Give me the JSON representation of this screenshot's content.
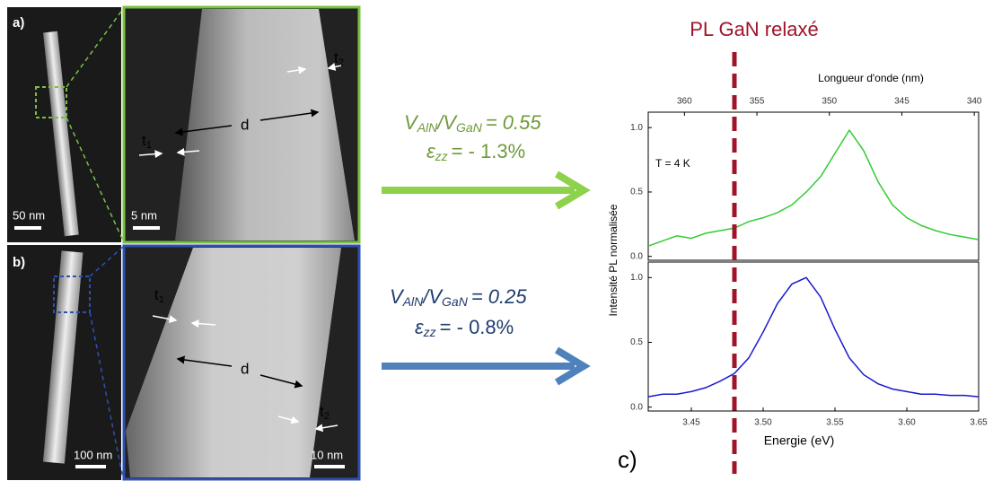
{
  "panels": {
    "a": {
      "label": "a)",
      "scale_small": "50 nm",
      "scale_large": "5 nm",
      "t1": "t",
      "t1_sub": "1",
      "t2": "t",
      "t2_sub": "2",
      "d": "d"
    },
    "b": {
      "label": "b)",
      "scale_small": "100 nm",
      "scale_large": "10 nm",
      "t1": "t",
      "t1_sub": "1",
      "t2": "t",
      "t2_sub": "2",
      "d": "d"
    }
  },
  "formulas": [
    {
      "v1": "V",
      "sub1": "AlN",
      "v2": "/V",
      "sub2": "GaN",
      "ratio": "= 0.55",
      "eps": "ε",
      "eps_sub": "zz",
      "strain": "= - 1.3%"
    },
    {
      "v1": "V",
      "sub1": "AlN",
      "v2": "/V",
      "sub2": "GaN",
      "ratio": "= 0.25",
      "eps": "ε",
      "eps_sub": "zz",
      "strain": "= - 0.8%"
    }
  ],
  "panel_c_label": "c)",
  "chart_data": [
    {
      "type": "line",
      "x2label": "Longueur d'onde (nm)",
      "x2lim": [
        362.5,
        339.7
      ],
      "x2ticks": [
        360,
        355,
        350,
        345,
        340
      ],
      "ylabel": "Intensité PL normalisée",
      "annotation": "T = 4 K",
      "reference_line": {
        "label": "PL GaN relaxé",
        "x": 3.48,
        "color": "#a0142a"
      },
      "xlim": [
        3.42,
        3.65
      ],
      "ylim": [
        -0.03,
        1.12
      ],
      "yticks": [
        {
          "value": 0,
          "label": "0.0"
        },
        {
          "value": 0.5,
          "label": "0.5"
        },
        {
          "value": 1,
          "label": "1.0"
        }
      ],
      "x": [
        3.42,
        3.43,
        3.44,
        3.45,
        3.46,
        3.47,
        3.48,
        3.49,
        3.5,
        3.51,
        3.52,
        3.53,
        3.54,
        3.55,
        3.56,
        3.57,
        3.58,
        3.59,
        3.6,
        3.61,
        3.62,
        3.63,
        3.64,
        3.65
      ],
      "series": [
        {
          "color": "#33cc33",
          "values": [
            0.08,
            0.12,
            0.16,
            0.14,
            0.18,
            0.2,
            0.22,
            0.27,
            0.3,
            0.34,
            0.4,
            0.5,
            0.62,
            0.8,
            0.98,
            0.82,
            0.58,
            0.4,
            0.3,
            0.24,
            0.2,
            0.17,
            0.15,
            0.13
          ]
        }
      ]
    },
    {
      "type": "line",
      "xlabel": "Energie (eV)",
      "xlim": [
        3.42,
        3.65
      ],
      "ylim": [
        -0.03,
        1.12
      ],
      "xticks": [
        3.45,
        {
          "value": 3.5,
          "label": "3.50"
        },
        3.55,
        {
          "value": 3.6,
          "label": "3.60"
        },
        3.65
      ],
      "yticks": [
        {
          "value": 0,
          "label": "0.0"
        },
        {
          "value": 0.5,
          "label": "0.5"
        },
        {
          "value": 1,
          "label": "1.0"
        }
      ],
      "x": [
        3.42,
        3.43,
        3.44,
        3.45,
        3.46,
        3.47,
        3.48,
        3.49,
        3.5,
        3.51,
        3.52,
        3.53,
        3.54,
        3.55,
        3.56,
        3.57,
        3.58,
        3.59,
        3.6,
        3.61,
        3.62,
        3.63,
        3.64,
        3.65
      ],
      "series": [
        {
          "color": "#1a1acc",
          "values": [
            0.08,
            0.1,
            0.1,
            0.12,
            0.15,
            0.2,
            0.26,
            0.38,
            0.58,
            0.8,
            0.95,
            1,
            0.85,
            0.6,
            0.38,
            0.25,
            0.18,
            0.14,
            0.12,
            0.1,
            0.1,
            0.09,
            0.09,
            0.08
          ]
        }
      ]
    }
  ]
}
